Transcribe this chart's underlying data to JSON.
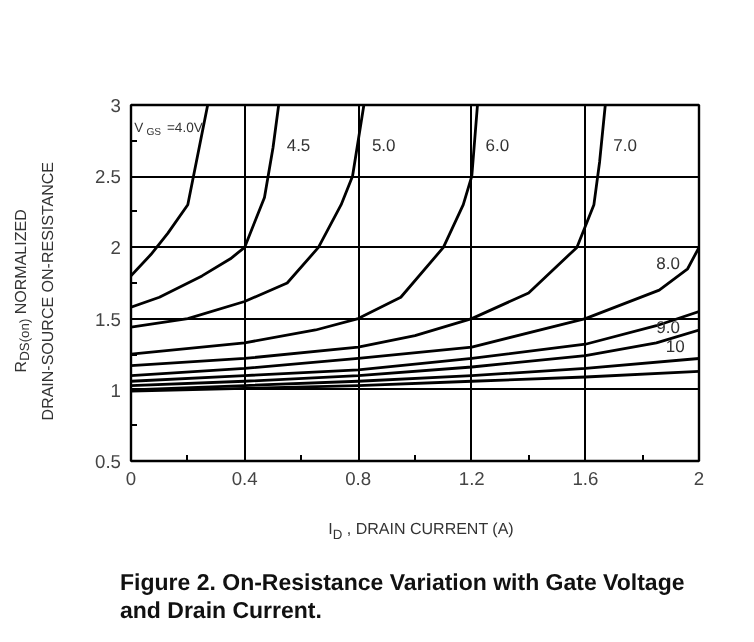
{
  "chart_data": {
    "type": "line",
    "title": "Figure 2. On-Resistance Variation with Gate Voltage and Drain Current.",
    "xlabel": "I$_{D}$ , DRAIN CURRENT (A)",
    "ylabel": "R$_{DS(on)}$ NORMALIZED\nDRAIN-SOURCE ON-RESISTANCE",
    "xlim": [
      0,
      2
    ],
    "ylim": [
      0.5,
      3
    ],
    "xticks": [
      0,
      0.4,
      0.8,
      1.2,
      1.6,
      2
    ],
    "yticks": [
      0.5,
      1,
      1.5,
      2,
      2.5,
      3
    ],
    "grid": true,
    "marker": "none",
    "line_style": "solid",
    "series": [
      {
        "name": "V$_{GS}$ =4.0V",
        "color": "#000000",
        "x": [
          0,
          0.07,
          0.13,
          0.2,
          0.23,
          0.27
        ],
        "values": [
          1.8,
          1.95,
          2.1,
          2.3,
          2.6,
          3
        ]
      },
      {
        "name": "4.5",
        "color": "#000000",
        "x": [
          0,
          0.1,
          0.25,
          0.35,
          0.4,
          0.47,
          0.5,
          0.52
        ],
        "values": [
          1.58,
          1.65,
          1.8,
          1.92,
          2.0,
          2.35,
          2.7,
          3
        ]
      },
      {
        "name": "5.0",
        "color": "#000000",
        "x": [
          0,
          0.2,
          0.4,
          0.55,
          0.66,
          0.74,
          0.78,
          0.82
        ],
        "values": [
          1.44,
          1.5,
          1.62,
          1.75,
          2.0,
          2.3,
          2.5,
          3
        ]
      },
      {
        "name": "6.0",
        "color": "#000000",
        "x": [
          0,
          0.4,
          0.65,
          0.8,
          0.95,
          1.1,
          1.17,
          1.2,
          1.22
        ],
        "values": [
          1.25,
          1.33,
          1.42,
          1.5,
          1.65,
          2.0,
          2.3,
          2.5,
          3
        ]
      },
      {
        "name": "7.0",
        "color": "#000000",
        "x": [
          0,
          0.4,
          0.8,
          1.0,
          1.2,
          1.4,
          1.57,
          1.63,
          1.65,
          1.67
        ],
        "values": [
          1.17,
          1.22,
          1.3,
          1.38,
          1.5,
          1.68,
          2.0,
          2.3,
          2.6,
          3
        ]
      },
      {
        "name": "8.0",
        "color": "#000000",
        "x": [
          0,
          0.4,
          0.8,
          1.2,
          1.6,
          1.86,
          1.96,
          2.0
        ],
        "values": [
          1.1,
          1.15,
          1.22,
          1.3,
          1.5,
          1.7,
          1.85,
          2.0
        ]
      },
      {
        "name": "9.0",
        "color": "#000000",
        "x": [
          0,
          0.4,
          0.8,
          1.2,
          1.6,
          1.85,
          2.0
        ],
        "values": [
          1.06,
          1.1,
          1.14,
          1.22,
          1.32,
          1.45,
          1.55
        ]
      },
      {
        "name": "10",
        "color": "#000000",
        "x": [
          0,
          0.4,
          0.8,
          1.2,
          1.6,
          1.85,
          2.0
        ],
        "values": [
          1.03,
          1.06,
          1.1,
          1.16,
          1.24,
          1.33,
          1.42
        ]
      },
      {
        "color": "#000000",
        "x": [
          0,
          0.4,
          0.8,
          1.2,
          1.6,
          2.0
        ],
        "values": [
          1.0,
          1.03,
          1.06,
          1.1,
          1.15,
          1.22
        ]
      },
      {
        "color": "#000000",
        "x": [
          0,
          0.4,
          0.8,
          1.2,
          1.6,
          2.0
        ],
        "values": [
          0.99,
          1.01,
          1.03,
          1.06,
          1.09,
          1.13
        ]
      }
    ]
  }
}
